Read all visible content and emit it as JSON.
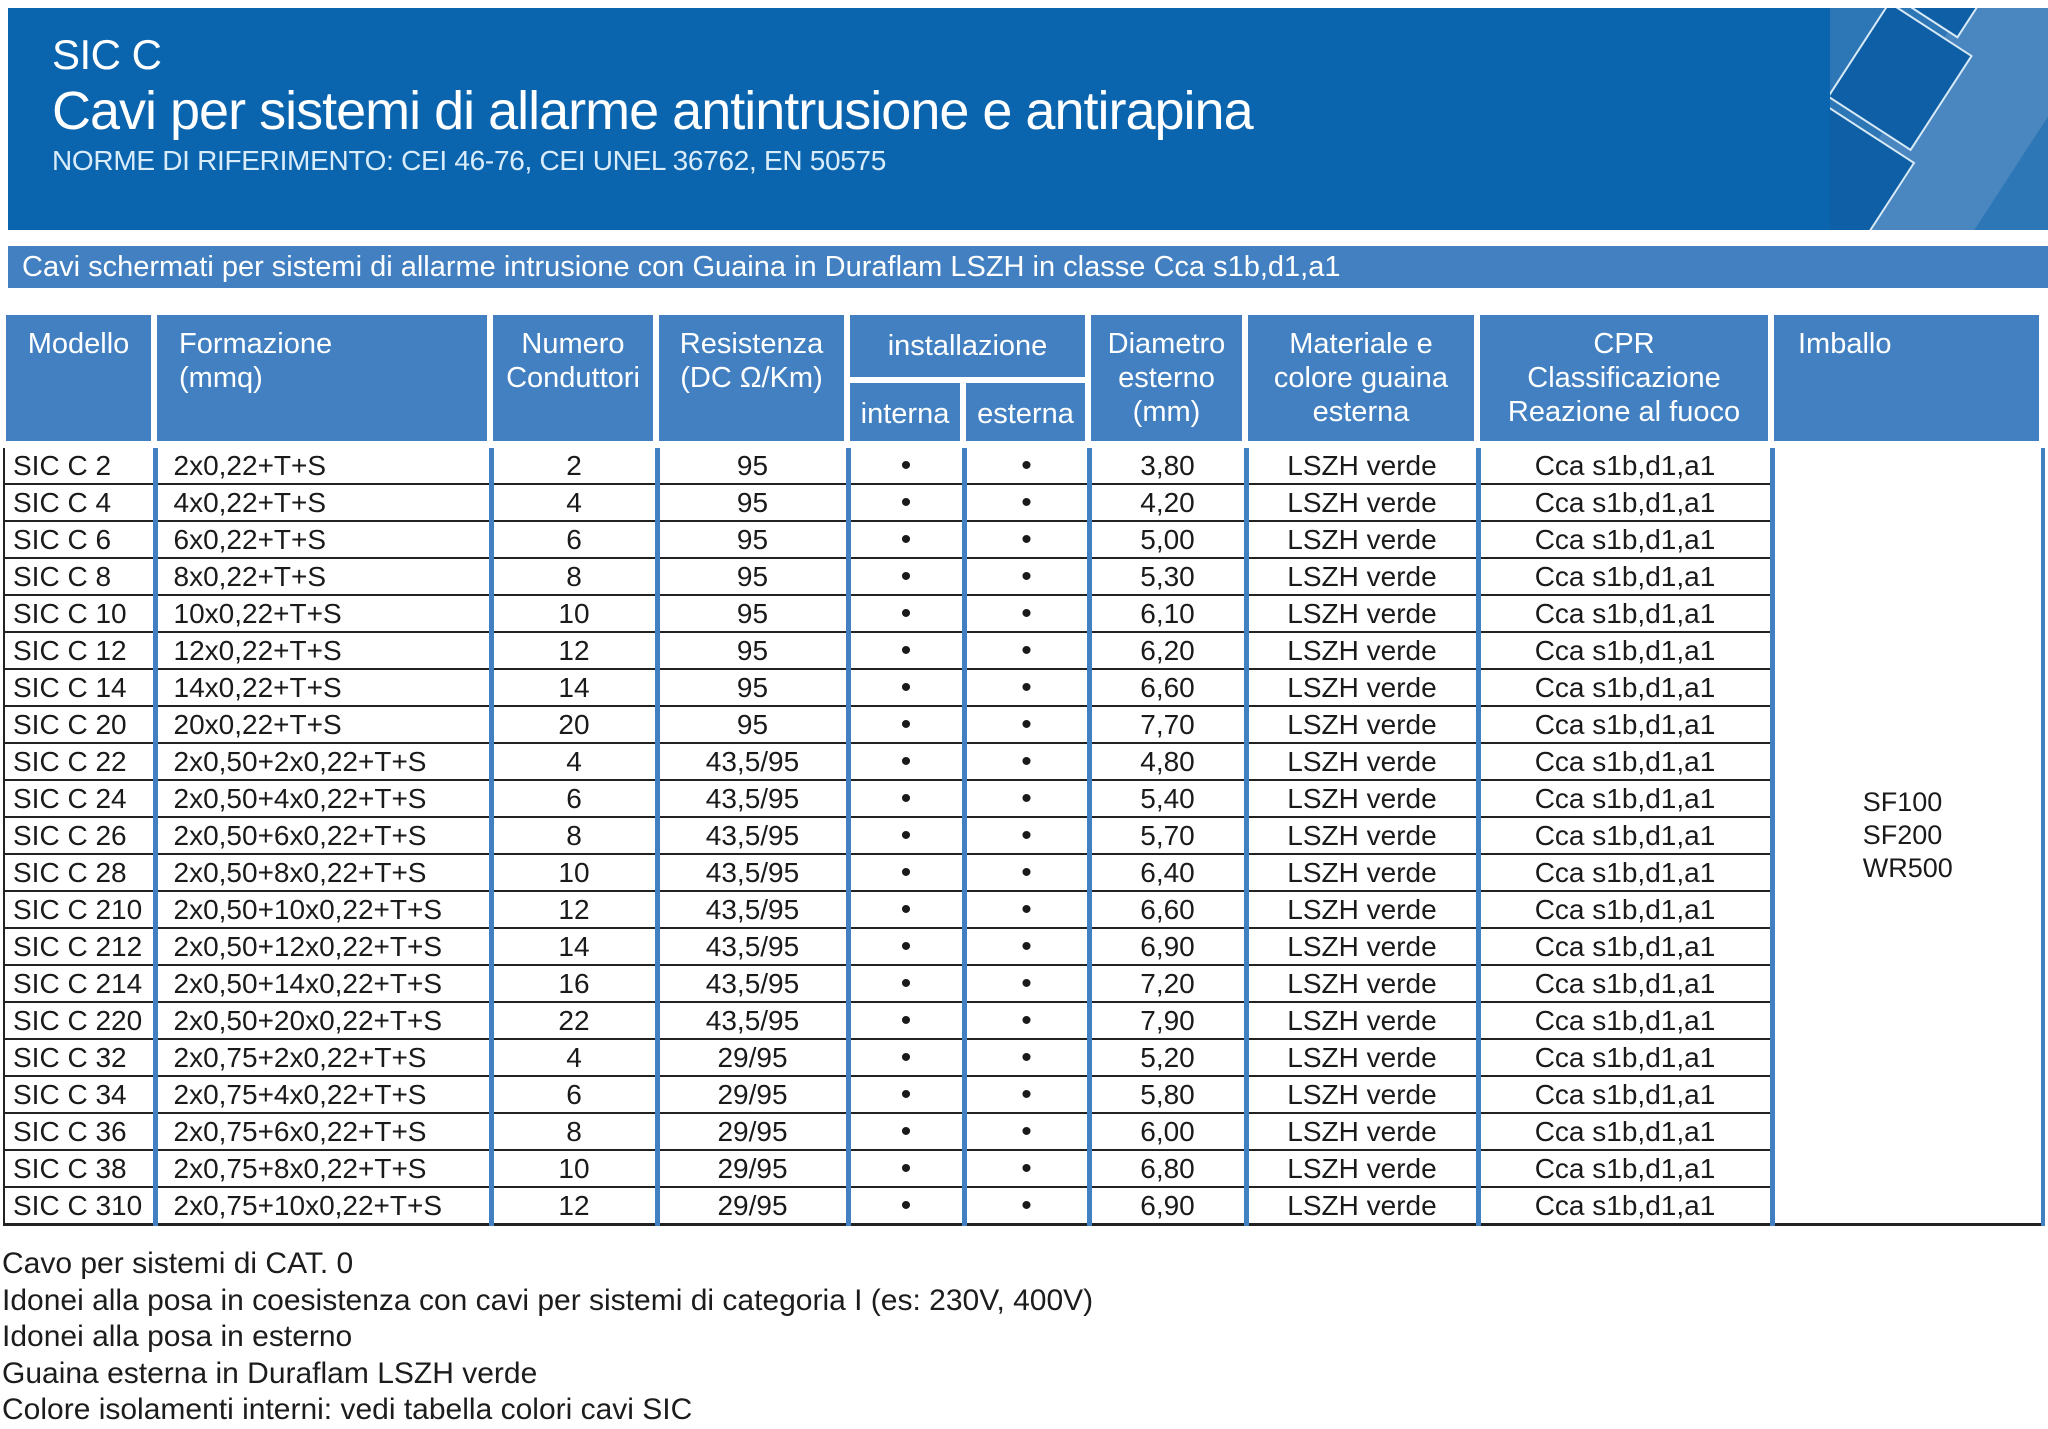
{
  "banner": {
    "product": "SIC C",
    "title": "Cavi per sistemi di allarme antintrusione e antirapina",
    "norms": "NORME DI RIFERIMENTO: CEI 46-76, CEI UNEL 36762, EN 50575"
  },
  "subheader": {
    "text": "Cavi schermati per sistemi di allarme intrusione con Guaina in Duraflam LSZH in classe Cca s1b,d1,a1"
  },
  "colors": {
    "banner_blue": "#0b64ae",
    "accent_blue": "#4280c1",
    "logo_blue": "#2e77b6",
    "cable_blue": "#0e5fa6",
    "row_line": "#222222",
    "body_text": "#1a1a1a"
  },
  "table": {
    "headers": {
      "modello": "Modello",
      "formazione": "Formazione\n(mmq)",
      "numero": "Numero\nConduttori",
      "resistenza": "Resistenza\n(DC Ω/Km)",
      "installazione": "installazione",
      "interna": "interna",
      "esterna": "esterna",
      "diametro": "Diametro\nesterno\n(mm)",
      "materiale": "Materiale e\ncolore guaina\nesterna",
      "cpr": "CPR\nClassificazione\nReazione al fuoco",
      "imballo": "Imballo"
    },
    "columns_order": [
      "modello",
      "formazione",
      "conduttori",
      "resistenza",
      "interna",
      "esterna",
      "diametro",
      "materiale",
      "cpr"
    ],
    "dot": "•",
    "rows": [
      [
        "SIC C 2",
        "2x0,22+T+S",
        "2",
        "95",
        true,
        true,
        "3,80",
        "LSZH verde",
        "Cca s1b,d1,a1"
      ],
      [
        "SIC C 4",
        "4x0,22+T+S",
        "4",
        "95",
        true,
        true,
        "4,20",
        "LSZH verde",
        "Cca s1b,d1,a1"
      ],
      [
        "SIC C 6",
        "6x0,22+T+S",
        "6",
        "95",
        true,
        true,
        "5,00",
        "LSZH verde",
        "Cca s1b,d1,a1"
      ],
      [
        "SIC C 8",
        "8x0,22+T+S",
        "8",
        "95",
        true,
        true,
        "5,30",
        "LSZH verde",
        "Cca s1b,d1,a1"
      ],
      [
        "SIC C 10",
        "10x0,22+T+S",
        "10",
        "95",
        true,
        true,
        "6,10",
        "LSZH verde",
        "Cca s1b,d1,a1"
      ],
      [
        "SIC C 12",
        "12x0,22+T+S",
        "12",
        "95",
        true,
        true,
        "6,20",
        "LSZH verde",
        "Cca s1b,d1,a1"
      ],
      [
        "SIC C 14",
        "14x0,22+T+S",
        "14",
        "95",
        true,
        true,
        "6,60",
        "LSZH verde",
        "Cca s1b,d1,a1"
      ],
      [
        "SIC C 20",
        "20x0,22+T+S",
        "20",
        "95",
        true,
        true,
        "7,70",
        "LSZH verde",
        "Cca s1b,d1,a1"
      ],
      [
        "SIC C 22",
        "2x0,50+2x0,22+T+S",
        "4",
        "43,5/95",
        true,
        true,
        "4,80",
        "LSZH verde",
        "Cca s1b,d1,a1"
      ],
      [
        "SIC C 24",
        "2x0,50+4x0,22+T+S",
        "6",
        "43,5/95",
        true,
        true,
        "5,40",
        "LSZH verde",
        "Cca s1b,d1,a1"
      ],
      [
        "SIC C 26",
        "2x0,50+6x0,22+T+S",
        "8",
        "43,5/95",
        true,
        true,
        "5,70",
        "LSZH verde",
        "Cca s1b,d1,a1"
      ],
      [
        "SIC C 28",
        "2x0,50+8x0,22+T+S",
        "10",
        "43,5/95",
        true,
        true,
        "6,40",
        "LSZH verde",
        "Cca s1b,d1,a1"
      ],
      [
        "SIC C 210",
        "2x0,50+10x0,22+T+S",
        "12",
        "43,5/95",
        true,
        true,
        "6,60",
        "LSZH verde",
        "Cca s1b,d1,a1"
      ],
      [
        "SIC C 212",
        "2x0,50+12x0,22+T+S",
        "14",
        "43,5/95",
        true,
        true,
        "6,90",
        "LSZH verde",
        "Cca s1b,d1,a1"
      ],
      [
        "SIC C 214",
        "2x0,50+14x0,22+T+S",
        "16",
        "43,5/95",
        true,
        true,
        "7,20",
        "LSZH verde",
        "Cca s1b,d1,a1"
      ],
      [
        "SIC C 220",
        "2x0,50+20x0,22+T+S",
        "22",
        "43,5/95",
        true,
        true,
        "7,90",
        "LSZH verde",
        "Cca s1b,d1,a1"
      ],
      [
        "SIC C 32",
        "2x0,75+2x0,22+T+S",
        "4",
        "29/95",
        true,
        true,
        "5,20",
        "LSZH verde",
        "Cca s1b,d1,a1"
      ],
      [
        "SIC C 34",
        "2x0,75+4x0,22+T+S",
        "6",
        "29/95",
        true,
        true,
        "5,80",
        "LSZH verde",
        "Cca s1b,d1,a1"
      ],
      [
        "SIC C 36",
        "2x0,75+6x0,22+T+S",
        "8",
        "29/95",
        true,
        true,
        "6,00",
        "LSZH verde",
        "Cca s1b,d1,a1"
      ],
      [
        "SIC C 38",
        "2x0,75+8x0,22+T+S",
        "10",
        "29/95",
        true,
        true,
        "6,80",
        "LSZH verde",
        "Cca s1b,d1,a1"
      ],
      [
        "SIC C 310",
        "2x0,75+10x0,22+T+S",
        "12",
        "29/95",
        true,
        true,
        "6,90",
        "LSZH verde",
        "Cca s1b,d1,a1"
      ]
    ],
    "imballo_values": [
      "SF100",
      "SF200",
      "WR500"
    ]
  },
  "notes": [
    "Cavo per sistemi di CAT. 0",
    "Idonei alla posa in coesistenza con cavi per sistemi di categoria I (es: 230V, 400V)",
    "Idonei alla posa in esterno",
    "Guaina esterna in Duraflam LSZH verde",
    "Colore isolamenti interni: vedi tabella colori cavi SIC"
  ]
}
